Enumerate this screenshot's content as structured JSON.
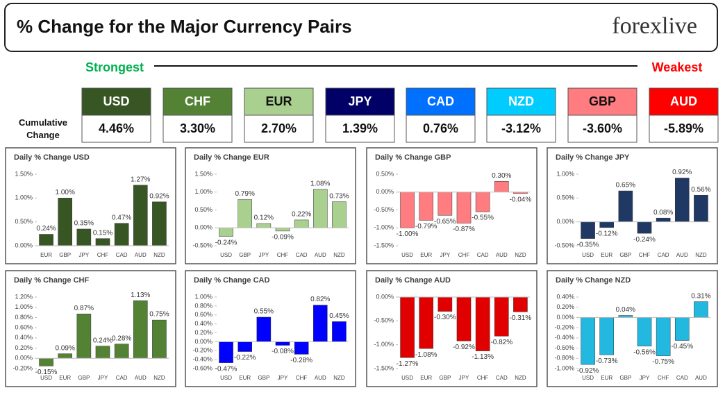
{
  "header": {
    "title": "% Change for the Major Currency Pairs",
    "logo": "forexlive"
  },
  "ranking": {
    "strongest": "Strongest",
    "weakest": "Weakest",
    "row_label": "Cumulative Change",
    "tiles": [
      {
        "currency": "USD",
        "change": "4.46%",
        "color": "#375623"
      },
      {
        "currency": "CHF",
        "change": "3.30%",
        "color": "#548235"
      },
      {
        "currency": "EUR",
        "change": "2.70%",
        "color": "#a9d08e"
      },
      {
        "currency": "JPY",
        "change": "1.39%",
        "color": "#000066"
      },
      {
        "currency": "CAD",
        "change": "0.76%",
        "color": "#0070ff"
      },
      {
        "currency": "NZD",
        "change": "-3.12%",
        "color": "#00ccff"
      },
      {
        "currency": "GBP",
        "change": "-3.60%",
        "color": "#ff7c80"
      },
      {
        "currency": "AUD",
        "change": "-5.89%",
        "color": "#ff0000"
      }
    ]
  },
  "chart_data": [
    {
      "type": "bar",
      "title": "Daily % Change USD",
      "color": "#375623",
      "categories": [
        "EUR",
        "GBP",
        "JPY",
        "CHF",
        "CAD",
        "AUD",
        "NZD"
      ],
      "values": [
        0.24,
        1.0,
        0.35,
        0.15,
        0.47,
        1.27,
        0.92
      ],
      "value_labels": [
        "0.24%",
        "1.00%",
        "0.35%",
        "0.15%",
        "0.47%",
        "1.27%",
        "0.92%"
      ],
      "ylim": [
        0,
        1.5
      ],
      "yticks": [
        {
          "value": 0,
          "label": "0.00%"
        },
        {
          "value": 0.5,
          "label": "0.50%"
        },
        {
          "value": 1,
          "label": "1.00%"
        },
        {
          "value": 1.5,
          "label": "1.50%"
        }
      ]
    },
    {
      "type": "bar",
      "title": "Daily % Change EUR",
      "color": "#a9d08e",
      "categories": [
        "USD",
        "GBP",
        "JPY",
        "CHF",
        "CAD",
        "AUD",
        "NZD"
      ],
      "values": [
        -0.24,
        0.79,
        0.12,
        -0.09,
        0.22,
        1.08,
        0.73
      ],
      "value_labels": [
        "-0.24%",
        "0.79%",
        "0.12%",
        "-0.09%",
        "0.22%",
        "1.08%",
        "0.73%"
      ],
      "ylim": [
        -0.5,
        1.5
      ],
      "yticks": [
        {
          "value": -0.5,
          "label": "-0.50%"
        },
        {
          "value": 0,
          "label": "0.00%"
        },
        {
          "value": 0.5,
          "label": "0.50%"
        },
        {
          "value": 1,
          "label": "1.00%"
        },
        {
          "value": 1.5,
          "label": "1.50%"
        }
      ]
    },
    {
      "type": "bar",
      "title": "Daily % Change GBP",
      "color": "#ff7c80",
      "categories": [
        "USD",
        "EUR",
        "JPY",
        "CHF",
        "CAD",
        "AUD",
        "NZD"
      ],
      "values": [
        -1.0,
        -0.79,
        -0.65,
        -0.87,
        -0.55,
        0.3,
        -0.04
      ],
      "value_labels": [
        "-1.00%",
        "-0.79%",
        "-0.65%",
        "-0.87%",
        "-0.55%",
        "0.30%",
        "-0.04%"
      ],
      "ylim": [
        -1.5,
        0.5
      ],
      "yticks": [
        {
          "value": -1.5,
          "label": "-1.50%"
        },
        {
          "value": -1,
          "label": "-1.00%"
        },
        {
          "value": -0.5,
          "label": "-0.50%"
        },
        {
          "value": 0,
          "label": "0.00%"
        },
        {
          "value": 0.5,
          "label": "0.50%"
        }
      ]
    },
    {
      "type": "bar",
      "title": "Daily % Change JPY",
      "color": "#1f3864",
      "categories": [
        "USD",
        "EUR",
        "GBP",
        "CHF",
        "CAD",
        "AUD",
        "NZD"
      ],
      "values": [
        -0.35,
        -0.12,
        0.65,
        -0.24,
        0.08,
        0.92,
        0.56
      ],
      "value_labels": [
        "-0.35%",
        "-0.12%",
        "0.65%",
        "-0.24%",
        "0.08%",
        "0.92%",
        "0.56%"
      ],
      "ylim": [
        -0.5,
        1
      ],
      "yticks": [
        {
          "value": -0.5,
          "label": "-0.50%"
        },
        {
          "value": 0,
          "label": "0.00%"
        },
        {
          "value": 0.5,
          "label": "0.50%"
        },
        {
          "value": 1,
          "label": "1.00%"
        }
      ]
    },
    {
      "type": "bar",
      "title": "Daily % Change CHF",
      "color": "#548235",
      "categories": [
        "USD",
        "EUR",
        "GBP",
        "JPY",
        "CAD",
        "AUD",
        "NZD"
      ],
      "values": [
        -0.15,
        0.09,
        0.87,
        0.24,
        0.28,
        1.13,
        0.75
      ],
      "value_labels": [
        "-0.15%",
        "0.09%",
        "0.87%",
        "0.24%",
        "0.28%",
        "1.13%",
        "0.75%"
      ],
      "ylim": [
        -0.2,
        1.2
      ],
      "yticks": [
        {
          "value": -0.2,
          "label": "-0.20%"
        },
        {
          "value": 0,
          "label": "0.00%"
        },
        {
          "value": 0.2,
          "label": "0.20%"
        },
        {
          "value": 0.4,
          "label": "0.40%"
        },
        {
          "value": 0.6,
          "label": "0.60%"
        },
        {
          "value": 0.8,
          "label": "0.80%"
        },
        {
          "value": 1,
          "label": "1.00%"
        },
        {
          "value": 1.2,
          "label": "1.20%"
        }
      ]
    },
    {
      "type": "bar",
      "title": "Daily % Change CAD",
      "color": "#0000ff",
      "categories": [
        "USD",
        "EUR",
        "GBP",
        "JPY",
        "CHF",
        "AUD",
        "NZD"
      ],
      "values": [
        -0.47,
        -0.22,
        0.55,
        -0.08,
        -0.28,
        0.82,
        0.45
      ],
      "value_labels": [
        "-0.47%",
        "-0.22%",
        "0.55%",
        "-0.08%",
        "-0.28%",
        "0.82%",
        "0.45%"
      ],
      "ylim": [
        -0.6,
        1
      ],
      "yticks": [
        {
          "value": -0.6,
          "label": "-0.60%"
        },
        {
          "value": -0.4,
          "label": "-0.40%"
        },
        {
          "value": -0.2,
          "label": "-0.20%"
        },
        {
          "value": 0,
          "label": "0.00%"
        },
        {
          "value": 0.2,
          "label": "0.20%"
        },
        {
          "value": 0.4,
          "label": "0.40%"
        },
        {
          "value": 0.6,
          "label": "0.60%"
        },
        {
          "value": 0.8,
          "label": "0.80%"
        },
        {
          "value": 1,
          "label": "1.00%"
        }
      ]
    },
    {
      "type": "bar",
      "title": "Daily % Change AUD",
      "color": "#e00000",
      "categories": [
        "USD",
        "EUR",
        "GBP",
        "JPY",
        "CHF",
        "CAD",
        "NZD"
      ],
      "values": [
        -1.27,
        -1.08,
        -0.3,
        -0.92,
        -1.13,
        -0.82,
        -0.31
      ],
      "value_labels": [
        "-1.27%",
        "-1.08%",
        "-0.30%",
        "-0.92%",
        "-1.13%",
        "-0.82%",
        "-0.31%"
      ],
      "ylim": [
        -1.5,
        0
      ],
      "yticks": [
        {
          "value": -1.5,
          "label": "-1.50%"
        },
        {
          "value": -1,
          "label": "-1.00%"
        },
        {
          "value": -0.5,
          "label": "-0.50%"
        },
        {
          "value": 0,
          "label": "0.00%"
        }
      ]
    },
    {
      "type": "bar",
      "title": "Daily % Change NZD",
      "color": "#22b8e0",
      "categories": [
        "USD",
        "EUR",
        "GBP",
        "JPY",
        "CHF",
        "CAD",
        "AUD"
      ],
      "values": [
        -0.92,
        -0.73,
        0.04,
        -0.56,
        -0.75,
        -0.45,
        0.31
      ],
      "value_labels": [
        "-0.92%",
        "-0.73%",
        "0.04%",
        "-0.56%",
        "-0.75%",
        "-0.45%",
        "0.31%"
      ],
      "ylim": [
        -1,
        0.4
      ],
      "yticks": [
        {
          "value": -1,
          "label": "-1.00%"
        },
        {
          "value": -0.8,
          "label": "-0.80%"
        },
        {
          "value": -0.6,
          "label": "-0.60%"
        },
        {
          "value": -0.4,
          "label": "-0.40%"
        },
        {
          "value": -0.2,
          "label": "-0.20%"
        },
        {
          "value": 0,
          "label": "0.00%"
        },
        {
          "value": 0.2,
          "label": "0.20%"
        },
        {
          "value": 0.4,
          "label": "0.40%"
        }
      ]
    }
  ]
}
